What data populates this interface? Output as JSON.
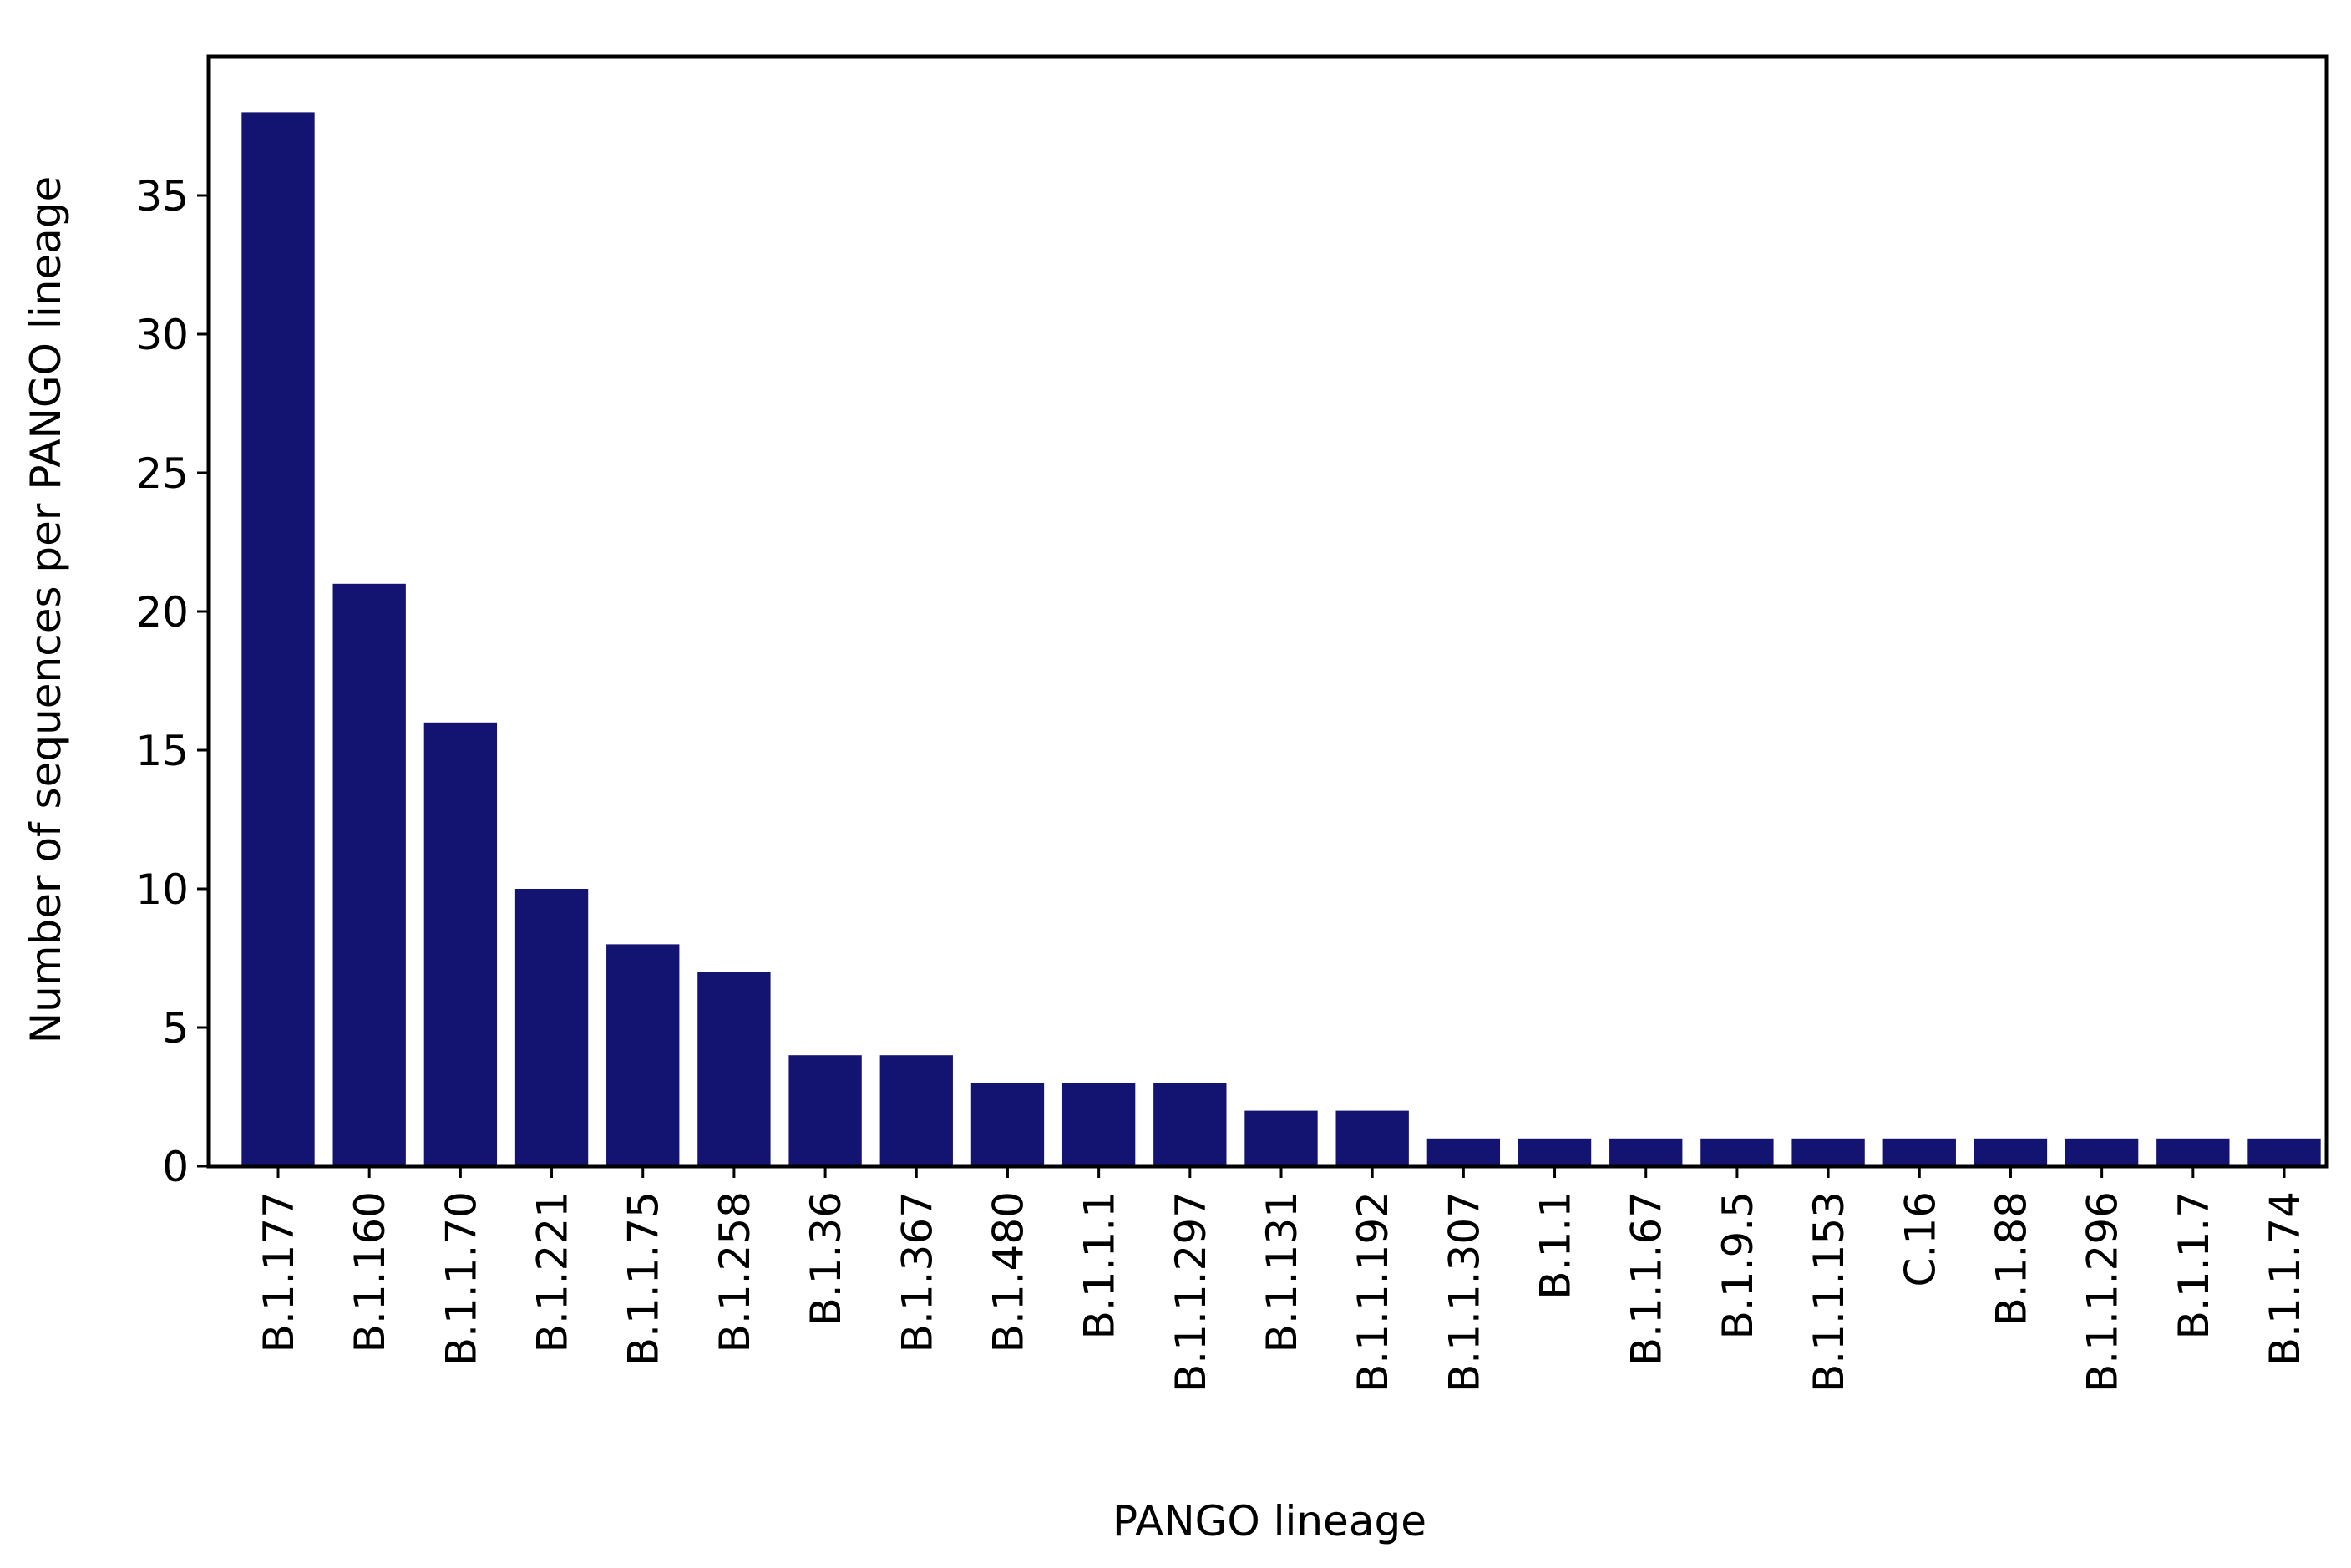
{
  "chart_data": {
    "type": "bar",
    "x_label": "PANGO lineage",
    "y_label": "Number of sequences per PANGO lineage",
    "categories": [
      "B.1.177",
      "B.1.160",
      "B.1.1.70",
      "B.1.221",
      "B.1.1.75",
      "B.1.258",
      "B.1.36",
      "B.1.367",
      "B.1.480",
      "B.1.1.1",
      "B.1.1.297",
      "B.1.131",
      "B.1.1.192",
      "B.1.1.307",
      "B.1.1",
      "B.1.1.67",
      "B.1.9.5",
      "B.1.1.153",
      "C.16",
      "B.1.88",
      "B.1.1.296",
      "B.1.1.7",
      "B.1.1.74"
    ],
    "values": [
      38,
      21,
      16,
      10,
      8,
      7,
      4,
      4,
      3,
      3,
      3,
      2,
      2,
      1,
      1,
      1,
      1,
      1,
      1,
      1,
      1,
      1,
      1
    ],
    "color": "#131372",
    "ylim": [
      0,
      40
    ],
    "yticks": [
      0,
      5,
      10,
      15,
      20,
      25,
      30,
      35
    ],
    "grid": false
  }
}
